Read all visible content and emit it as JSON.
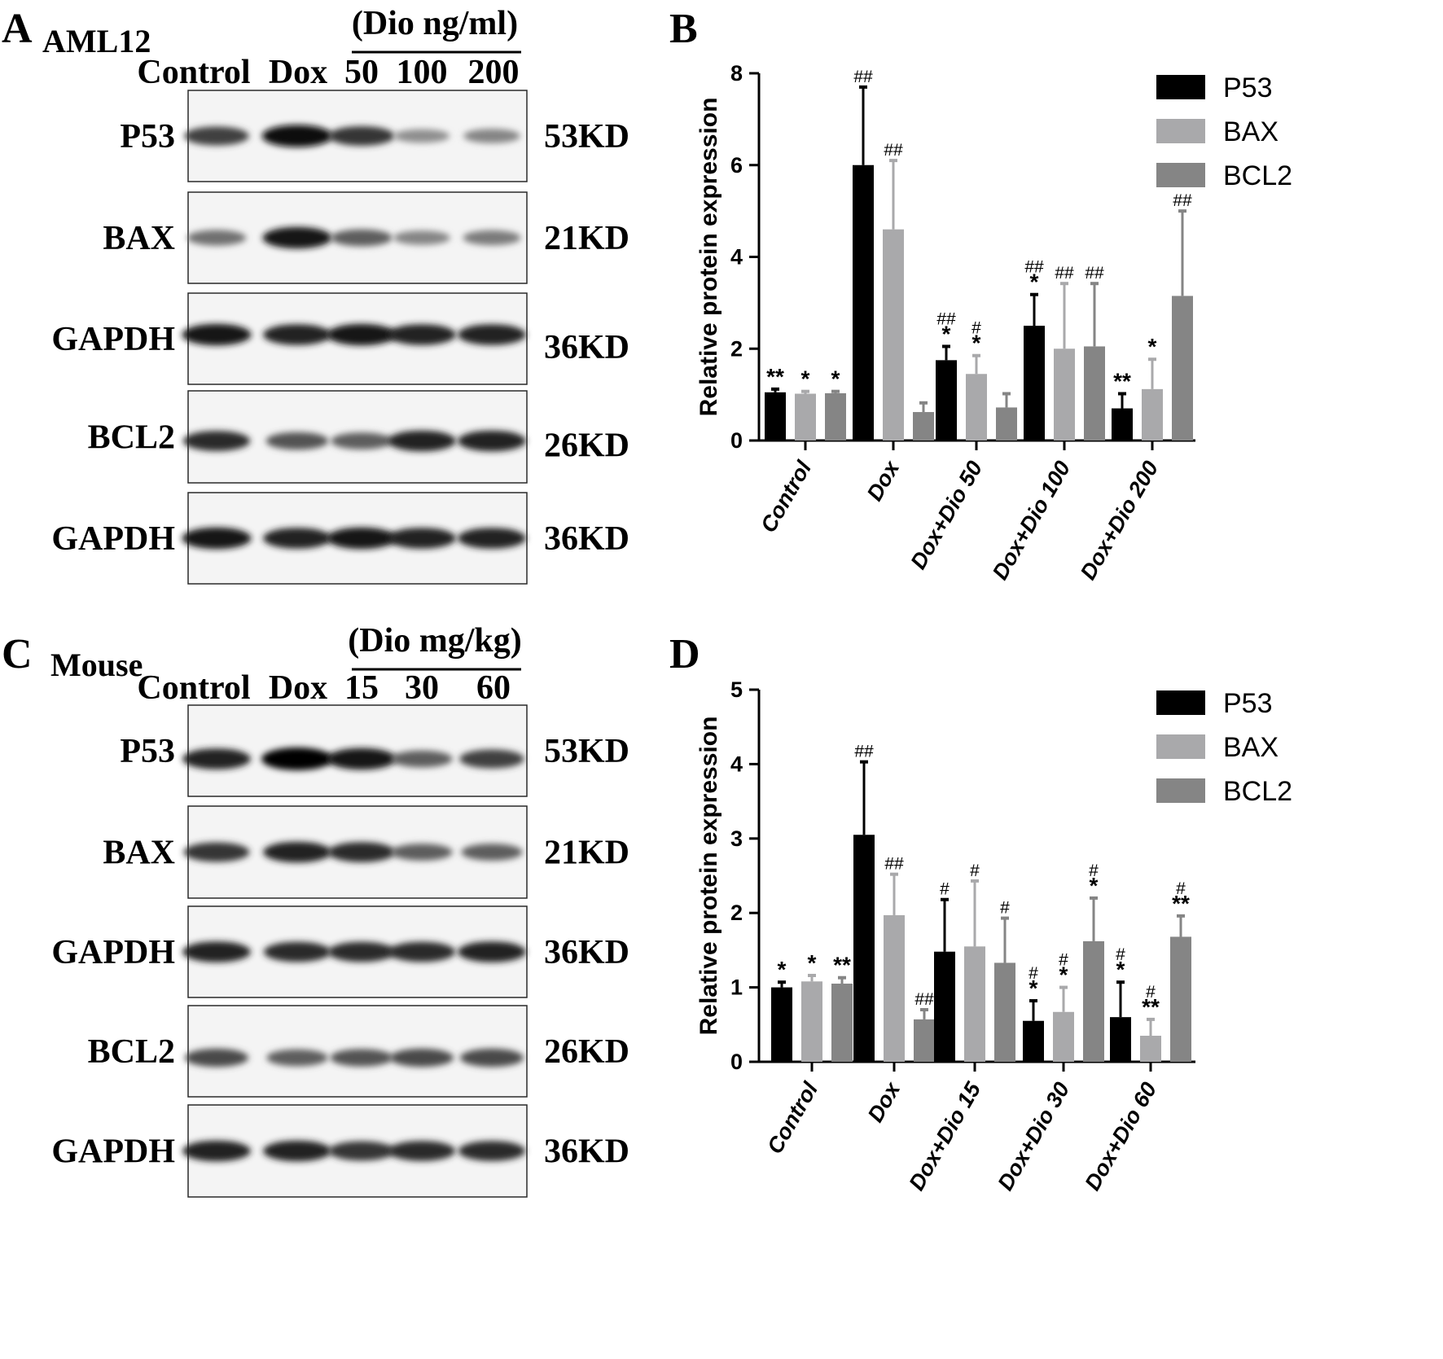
{
  "western_blots": [
    {
      "panel_letter": "A",
      "cell_line": "AML12",
      "dose_header": "(Dio ng/ml)",
      "lanes": [
        "Control",
        "Dox",
        "50",
        "100",
        "200"
      ],
      "bands": [
        {
          "protein": "P53",
          "size": "53KD",
          "intensity": [
            0.7,
            0.95,
            0.75,
            0.3,
            0.35
          ]
        },
        {
          "protein": "BAX",
          "size": "21KD",
          "intensity": [
            0.45,
            0.9,
            0.55,
            0.35,
            0.4
          ]
        },
        {
          "protein": "GAPDH",
          "size": "36KD",
          "intensity": [
            0.9,
            0.85,
            0.9,
            0.85,
            0.85
          ]
        },
        {
          "protein": "BCL2",
          "size": "26KD",
          "intensity": [
            0.8,
            0.6,
            0.55,
            0.85,
            0.85
          ]
        },
        {
          "protein": "GAPDH",
          "size": "36KD",
          "intensity": [
            0.9,
            0.85,
            0.9,
            0.85,
            0.85
          ]
        }
      ]
    },
    {
      "panel_letter": "C",
      "cell_line": "Mouse",
      "dose_header": "(Dio mg/kg)",
      "lanes": [
        "Control",
        "Dox",
        "15",
        "30",
        "60"
      ],
      "bands": [
        {
          "protein": "P53",
          "size": "53KD",
          "intensity": [
            0.85,
            1.0,
            0.9,
            0.55,
            0.7
          ]
        },
        {
          "protein": "BAX",
          "size": "21KD",
          "intensity": [
            0.75,
            0.85,
            0.8,
            0.55,
            0.55
          ]
        },
        {
          "protein": "GAPDH",
          "size": "36KD",
          "intensity": [
            0.85,
            0.8,
            0.8,
            0.8,
            0.85
          ]
        },
        {
          "protein": "BCL2",
          "size": "26KD",
          "intensity": [
            0.65,
            0.55,
            0.6,
            0.65,
            0.65
          ]
        },
        {
          "protein": "GAPDH",
          "size": "36KD",
          "intensity": [
            0.85,
            0.85,
            0.75,
            0.8,
            0.8
          ]
        }
      ]
    }
  ],
  "chart_data": [
    {
      "panel_letter": "B",
      "type": "bar",
      "ylabel": "Relative protein expression",
      "ylim": [
        0,
        8
      ],
      "yticks": [
        "0",
        "2",
        "4",
        "6",
        "8"
      ],
      "categories": [
        "Control",
        "Dox",
        "Dox+Dio 50",
        "Dox+Dio 100",
        "Dox+Dio 200"
      ],
      "legend_position": "top-right",
      "series": [
        {
          "name": "P53",
          "color": "#000000",
          "values": [
            1.05,
            6.0,
            1.75,
            2.5,
            0.7
          ],
          "errors": [
            0.07,
            1.7,
            0.3,
            0.68,
            0.32
          ],
          "marks": [
            "**",
            "##",
            "##\n*",
            "##\n*",
            "**"
          ]
        },
        {
          "name": "BAX",
          "color": "#a9a9ab",
          "values": [
            1.02,
            4.6,
            1.45,
            2.0,
            1.12
          ],
          "errors": [
            0.05,
            1.5,
            0.4,
            1.42,
            0.65
          ],
          "marks": [
            "*",
            "##",
            "#\n*",
            "##",
            "*"
          ]
        },
        {
          "name": "BCL2",
          "color": "#858585",
          "values": [
            1.03,
            0.62,
            0.72,
            2.05,
            3.15
          ],
          "errors": [
            0.04,
            0.2,
            0.3,
            1.37,
            1.85
          ],
          "marks": [
            "*",
            "",
            "",
            "##",
            "##"
          ]
        }
      ]
    },
    {
      "panel_letter": "D",
      "type": "bar",
      "ylabel": "Relative protein expression",
      "ylim": [
        0,
        5
      ],
      "yticks": [
        "0",
        "1",
        "2",
        "3",
        "4",
        "5"
      ],
      "categories": [
        "Control",
        "Dox",
        "Dox+Dio 15",
        "Dox+Dio 30",
        "Dox+Dio 60"
      ],
      "legend_position": "top-right",
      "series": [
        {
          "name": "P53",
          "color": "#000000",
          "values": [
            1.0,
            3.05,
            1.48,
            0.55,
            0.6
          ],
          "errors": [
            0.07,
            0.98,
            0.7,
            0.27,
            0.47
          ],
          "marks": [
            "*",
            "##",
            "#",
            "#\n*",
            "#\n*"
          ]
        },
        {
          "name": "BAX",
          "color": "#a9a9ab",
          "values": [
            1.08,
            1.97,
            1.55,
            0.67,
            0.35
          ],
          "errors": [
            0.08,
            0.55,
            0.88,
            0.33,
            0.22
          ],
          "marks": [
            "*",
            "##",
            "#",
            "#\n*",
            "#\n**"
          ]
        },
        {
          "name": "BCL2",
          "color": "#858585",
          "values": [
            1.05,
            0.57,
            1.33,
            1.62,
            1.68
          ],
          "errors": [
            0.08,
            0.13,
            0.6,
            0.58,
            0.28
          ],
          "marks": [
            "**",
            "##",
            "#",
            "#\n*",
            "#\n**"
          ]
        }
      ]
    }
  ]
}
